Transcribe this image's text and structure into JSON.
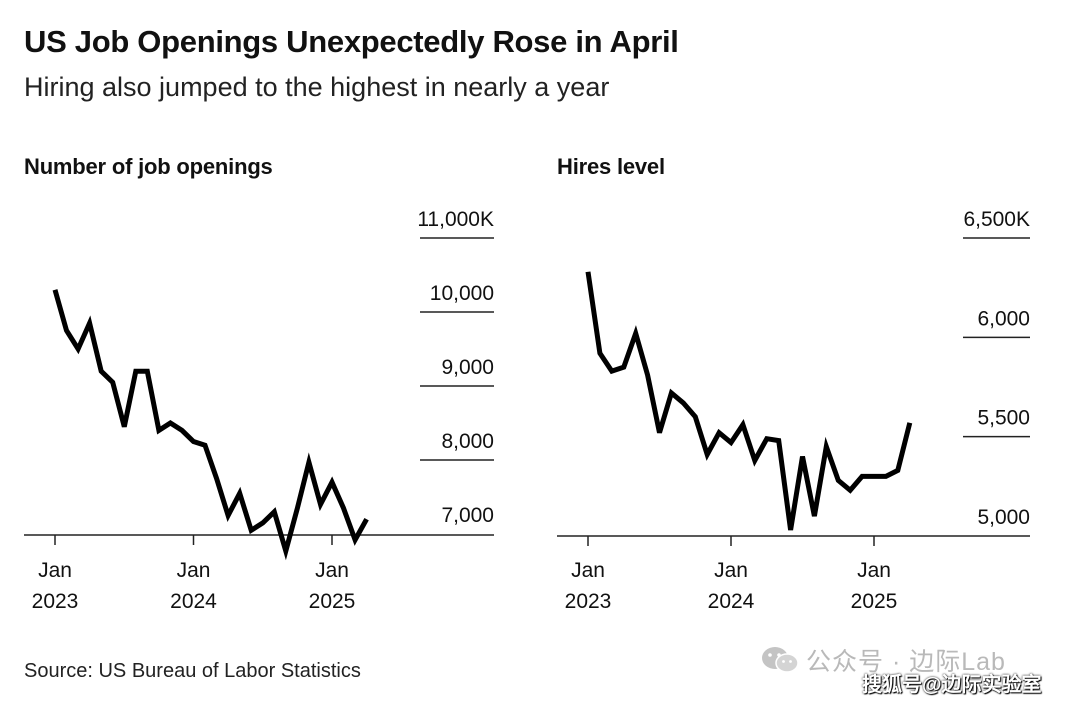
{
  "title": "US Job Openings Unexpectedly Rose in April",
  "subtitle": "Hiring also jumped to the highest in nearly a year",
  "source": "Source: US Bureau of Labor Statistics",
  "watermark": {
    "text": "公众号 · 边际Lab",
    "logo": "wechat-logo-icon",
    "credit": "搜狐号@边际实验室"
  },
  "colors": {
    "line": "#000000",
    "text": "#111111",
    "watermark": "#b9b9b9"
  },
  "chart_data": [
    {
      "type": "line",
      "title": "Number of job openings",
      "xlabel": "",
      "ylabel": "",
      "ylim": [
        6700,
        11000
      ],
      "y_ticks": [
        7000,
        8000,
        9000,
        10000,
        11000
      ],
      "y_tick_labels": [
        "7,000",
        "8,000",
        "9,000",
        "10,000",
        "11,000K"
      ],
      "x_tick_labels": [
        {
          "month": "Jan",
          "year": "2023",
          "index": 0
        },
        {
          "month": "Jan",
          "year": "2024",
          "index": 12
        },
        {
          "month": "Jan",
          "year": "2025",
          "index": 24
        }
      ],
      "grid": false,
      "legend": "none",
      "series": [
        {
          "x": [
            "2023-01",
            "2023-02",
            "2023-03",
            "2023-04",
            "2023-05",
            "2023-06",
            "2023-07",
            "2023-08",
            "2023-09",
            "2023-10",
            "2023-11",
            "2023-12",
            "2024-01",
            "2024-02",
            "2024-03",
            "2024-04",
            "2024-05",
            "2024-06",
            "2024-07",
            "2024-08",
            "2024-09",
            "2024-10",
            "2024-11",
            "2024-12",
            "2025-01",
            "2025-02",
            "2025-03",
            "2025-04"
          ],
          "values": [
            10300,
            9750,
            9500,
            9850,
            9200,
            9050,
            8450,
            9200,
            9200,
            8400,
            8500,
            8400,
            8250,
            8200,
            7750,
            7250,
            7550,
            7050,
            7150,
            7300,
            6770,
            7350,
            7970,
            7400,
            7700,
            7350,
            6920,
            7200
          ]
        }
      ]
    },
    {
      "type": "line",
      "title": "Hires level",
      "xlabel": "",
      "ylabel": "",
      "ylim": [
        4950,
        6500
      ],
      "y_ticks": [
        5000,
        5500,
        6000,
        6500
      ],
      "y_tick_labels": [
        "5,000",
        "5,500",
        "6,000",
        "6,500K"
      ],
      "x_tick_labels": [
        {
          "month": "Jan",
          "year": "2023",
          "index": 0
        },
        {
          "month": "Jan",
          "year": "2024",
          "index": 12
        },
        {
          "month": "Jan",
          "year": "2025",
          "index": 24
        }
      ],
      "grid": false,
      "legend": "none",
      "series": [
        {
          "x": [
            "2023-01",
            "2023-02",
            "2023-03",
            "2023-04",
            "2023-05",
            "2023-06",
            "2023-07",
            "2023-08",
            "2023-09",
            "2023-10",
            "2023-11",
            "2023-12",
            "2024-01",
            "2024-02",
            "2024-03",
            "2024-04",
            "2024-05",
            "2024-06",
            "2024-07",
            "2024-08",
            "2024-09",
            "2024-10",
            "2024-11",
            "2024-12",
            "2025-01",
            "2025-02",
            "2025-03",
            "2025-04"
          ],
          "values": [
            6330,
            5920,
            5830,
            5850,
            6020,
            5810,
            5520,
            5720,
            5670,
            5600,
            5410,
            5520,
            5470,
            5560,
            5380,
            5490,
            5480,
            5030,
            5400,
            5100,
            5450,
            5280,
            5230,
            5300,
            5300,
            5300,
            5330,
            5570
          ]
        }
      ]
    }
  ]
}
